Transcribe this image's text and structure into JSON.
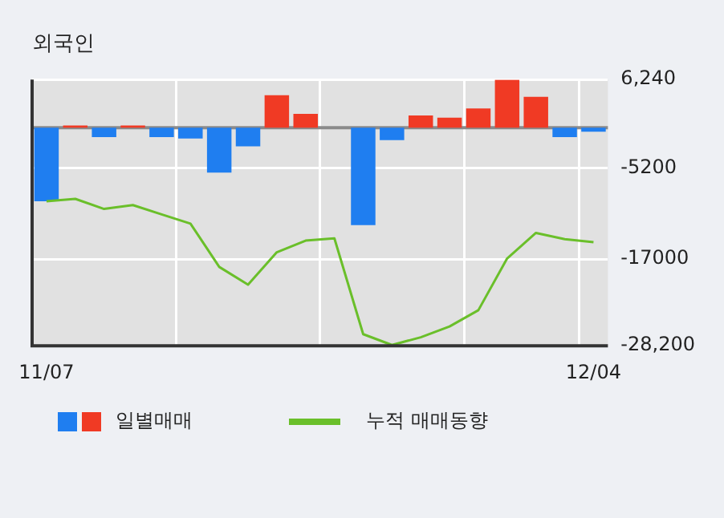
{
  "chart_data": {
    "type": "bar",
    "title": "외국인",
    "categories": [
      "11/07",
      null,
      null,
      null,
      null,
      null,
      null,
      null,
      null,
      null,
      null,
      null,
      null,
      null,
      null,
      null,
      null,
      null,
      null,
      "12/04"
    ],
    "series": [
      {
        "name": "일별매매",
        "colors": [
          "#1f7ef0",
          "#f03a24",
          "#1f7ef0",
          "#f03a24",
          "#1f7ef0",
          "#1f7ef0",
          "#1f7ef0",
          "#1f7ef0",
          "#f03a24",
          "#f03a24",
          "#f03a24",
          "#1f7ef0",
          "#1f7ef0",
          "#f03a24",
          "#f03a24",
          "#f03a24",
          "#f03a24",
          "#f03a24",
          "#1f7ef0",
          "#1f7ef0"
        ],
        "values": [
          -9500,
          300,
          -1200,
          300,
          -1200,
          -1400,
          -5800,
          -2400,
          4200,
          1800,
          0,
          -12600,
          -1600,
          1600,
          1300,
          2500,
          6200,
          4000,
          -1200,
          -500
        ]
      },
      {
        "name": "누적 매매동향",
        "type": "line",
        "color": "#6abf2a",
        "values": [
          -9500,
          -9200,
          -10500,
          -10000,
          -11200,
          -12400,
          -18000,
          -20300,
          -16100,
          -14600,
          -14300,
          -26700,
          -28100,
          -27100,
          -25700,
          -23600,
          -16900,
          -13600,
          -14400,
          -14800
        ]
      }
    ],
    "ylim": [
      -28200,
      6240
    ],
    "yticks": [
      {
        "value": 6240,
        "label": "6,240"
      },
      -5200,
      -17000,
      {
        "value": -28200,
        "label": "-28,200"
      }
    ],
    "ref_lines": [
      {
        "axis": "y",
        "value": 0,
        "color": "#8a8a8a"
      }
    ],
    "grid": true,
    "legend": "bottom"
  }
}
